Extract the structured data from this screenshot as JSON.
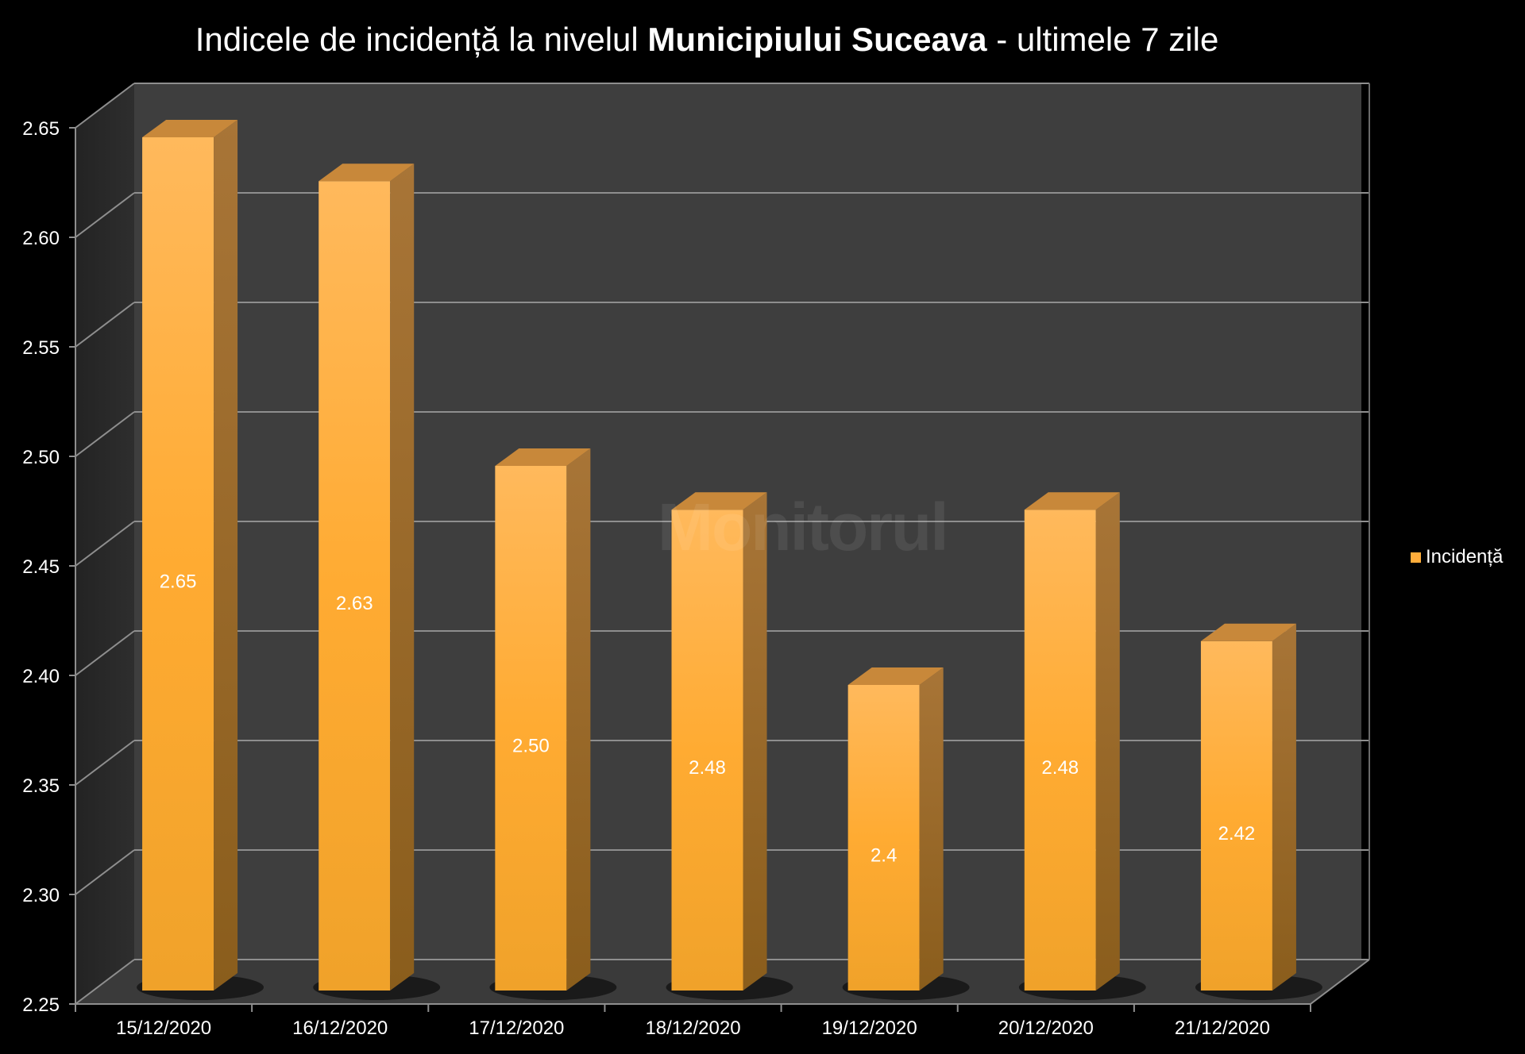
{
  "chart_data": {
    "type": "bar",
    "title_pre": "Indicele de incidență la nivelul ",
    "title_bold": "Municipiului Suceava",
    "title_post": " - ultimele 7 zile",
    "categories": [
      "15/12/2020",
      "16/12/2020",
      "17/12/2020",
      "18/12/2020",
      "19/12/2020",
      "20/12/2020",
      "21/12/2020"
    ],
    "series": [
      {
        "name": "Incidență",
        "values": [
          2.65,
          2.63,
          2.5,
          2.48,
          2.4,
          2.48,
          2.42
        ],
        "labels": [
          "2.65",
          "2.63",
          "2.50",
          "2.48",
          "2.4",
          "2.48",
          "2.42"
        ],
        "color": "#ffad3b"
      }
    ],
    "yticks": [
      "2.25",
      "2.30",
      "2.35",
      "2.40",
      "2.45",
      "2.50",
      "2.55",
      "2.60",
      "2.65"
    ],
    "ylim": [
      2.25,
      2.65
    ],
    "grid": true,
    "legend_position": "right",
    "watermark": "Monitorul"
  }
}
